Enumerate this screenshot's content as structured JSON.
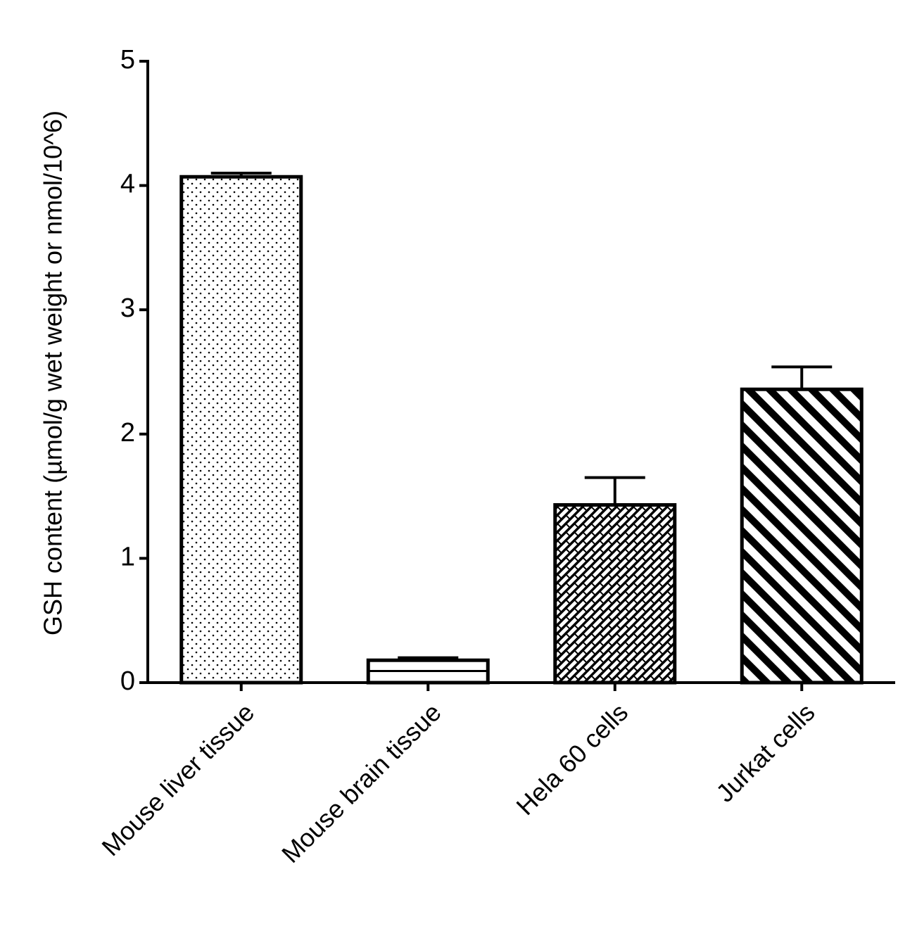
{
  "chart_data": {
    "type": "bar",
    "y_label": "GSH content (µmol/g wet weight or nmol/10^6)",
    "categories": [
      "Mouse liver tissue",
      "Mouse brain tissue",
      "Hela 60 cells",
      "Jurkat cells"
    ],
    "values": [
      4.07,
      0.18,
      1.43,
      2.36
    ],
    "errors": [
      0.03,
      0.02,
      0.22,
      0.18
    ],
    "color": "#000000",
    "ylim": [
      0,
      5
    ],
    "yticks": [
      0,
      1,
      2,
      3,
      4,
      5
    ]
  }
}
